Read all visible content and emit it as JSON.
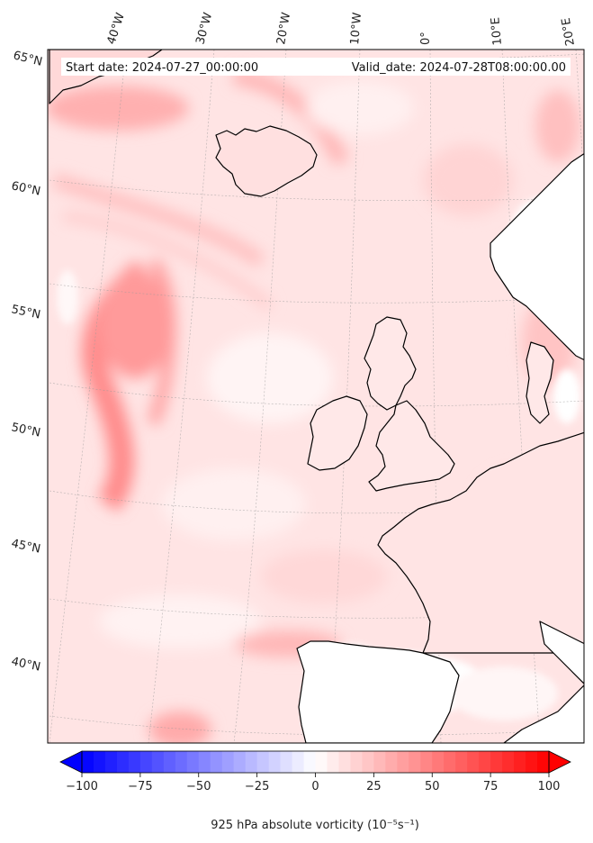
{
  "map": {
    "start_label": "Start date: 2024-07-27_00:00:00",
    "valid_label": "Valid_date: 2024-07-28T08:00:00.00",
    "lon_labels": [
      "40°W",
      "30°W",
      "20°W",
      "10°W",
      "0°",
      "10°E",
      "20°E"
    ],
    "lat_labels": [
      "65°N",
      "60°N",
      "55°N",
      "50°N",
      "45°N",
      "40°N"
    ],
    "field": "925 hPa absolute vorticity"
  },
  "colorbar": {
    "ticks": [
      "−100",
      "−75",
      "−50",
      "−25",
      "0",
      "25",
      "50",
      "75",
      "100"
    ],
    "label": "925 hPa absolute vorticity (10⁻⁵s⁻¹)",
    "min": -100,
    "max": 100,
    "levels": 40,
    "neg_color": "#0000ff",
    "pos_color": "#ff0000",
    "mid_color": "#ffffff",
    "extend": "both"
  },
  "colors": {
    "background_field": "#ffe6e6",
    "coastline": "#000000"
  }
}
